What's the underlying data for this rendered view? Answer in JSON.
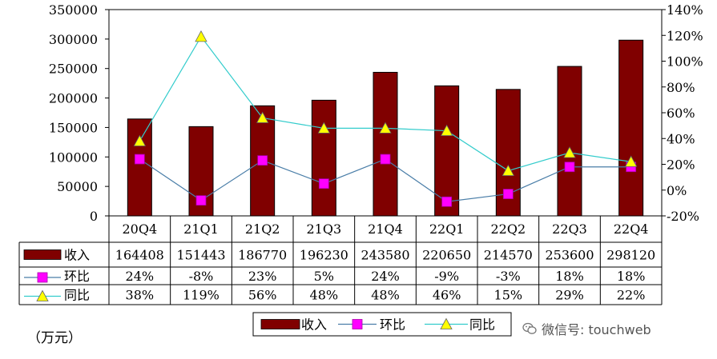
{
  "chart_data": {
    "type": "bar",
    "categories": [
      "20Q4",
      "21Q1",
      "21Q2",
      "21Q3",
      "21Q4",
      "22Q1",
      "22Q2",
      "22Q3",
      "22Q4"
    ],
    "series": [
      {
        "name": "收入",
        "kind": "bar",
        "axis": "left",
        "color": "#800000",
        "values": [
          164408,
          151443,
          186770,
          196230,
          243580,
          220650,
          214570,
          253600,
          298120
        ],
        "labels": [
          "164408",
          "151443",
          "186770",
          "196230",
          "243580",
          "220650",
          "214570",
          "253600",
          "298120"
        ]
      },
      {
        "name": "环比",
        "kind": "line",
        "axis": "right",
        "color": "#4a7ea8",
        "marker_color": "#ff00ff",
        "values": [
          24,
          -8,
          23,
          5,
          24,
          -9,
          -3,
          18,
          18
        ],
        "labels": [
          "24%",
          "-8%",
          "23%",
          "5%",
          "24%",
          "-9%",
          "-3%",
          "18%",
          "18%"
        ]
      },
      {
        "name": "同比",
        "kind": "line",
        "axis": "right",
        "color": "#33cccc",
        "marker_color": "#ffff00",
        "values": [
          38,
          119,
          56,
          48,
          48,
          46,
          15,
          29,
          22
        ],
        "labels": [
          "38%",
          "119%",
          "56%",
          "48%",
          "48%",
          "46%",
          "15%",
          "29%",
          "22%"
        ]
      }
    ],
    "ylim_left": [
      0,
      350000
    ],
    "yticks_left": [
      "0",
      "50000",
      "100000",
      "150000",
      "200000",
      "250000",
      "300000",
      "350000"
    ],
    "ylim_right": [
      -20,
      140
    ],
    "yticks_right": [
      "-20%",
      "0%",
      "20%",
      "40%",
      "60%",
      "80%",
      "100%",
      "120%",
      "140%"
    ],
    "legend_position": "bottom",
    "grid": false,
    "unit_label": "（万元）"
  },
  "watermark": {
    "icon": "wechat-icon",
    "text": "微信号: touchweb"
  }
}
